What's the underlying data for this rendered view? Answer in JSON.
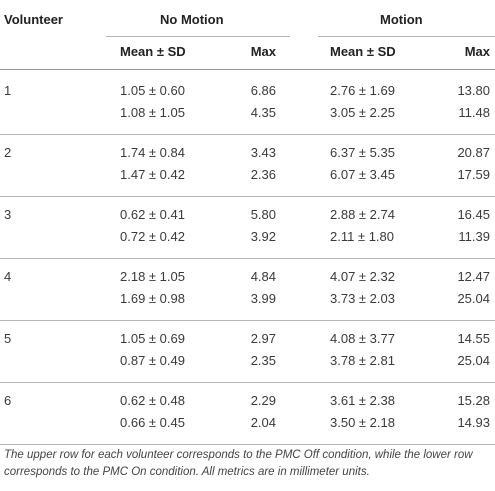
{
  "table": {
    "col_volunteer": "Volunteer",
    "group_no_motion": "No Motion",
    "group_motion": "Motion",
    "sub_mean": "Mean ± SD",
    "sub_max": "Max",
    "rows": [
      {
        "id": "1",
        "off": {
          "nm_mean": "1.05 ± 0.60",
          "nm_max": "6.86",
          "m_mean": "2.76 ± 1.69",
          "m_max": "13.80"
        },
        "on": {
          "nm_mean": "1.08 ± 1.05",
          "nm_max": "4.35",
          "m_mean": "3.05 ± 2.25",
          "m_max": "11.48"
        }
      },
      {
        "id": "2",
        "off": {
          "nm_mean": "1.74 ± 0.84",
          "nm_max": "3.43",
          "m_mean": "6.37 ± 5.35",
          "m_max": "20.87"
        },
        "on": {
          "nm_mean": "1.47 ± 0.42",
          "nm_max": "2.36",
          "m_mean": "6.07 ± 3.45",
          "m_max": "17.59"
        }
      },
      {
        "id": "3",
        "off": {
          "nm_mean": "0.62 ± 0.41",
          "nm_max": "5.80",
          "m_mean": "2.88 ± 2.74",
          "m_max": "16.45"
        },
        "on": {
          "nm_mean": "0.72 ± 0.42",
          "nm_max": "3.92",
          "m_mean": "2.11 ± 1.80",
          "m_max": "11.39"
        }
      },
      {
        "id": "4",
        "off": {
          "nm_mean": "2.18 ± 1.05",
          "nm_max": "4.84",
          "m_mean": "4.07 ± 2.32",
          "m_max": "12.47"
        },
        "on": {
          "nm_mean": "1.69 ± 0.98",
          "nm_max": "3.99",
          "m_mean": "3.73 ± 2.03",
          "m_max": "25.04"
        }
      },
      {
        "id": "5",
        "off": {
          "nm_mean": "1.05 ± 0.69",
          "nm_max": "2.97",
          "m_mean": "4.08 ± 3.77",
          "m_max": "14.55"
        },
        "on": {
          "nm_mean": "0.87 ± 0.49",
          "nm_max": "2.35",
          "m_mean": "3.78 ± 2.81",
          "m_max": "25.04"
        }
      },
      {
        "id": "6",
        "off": {
          "nm_mean": "0.62 ± 0.48",
          "nm_max": "2.29",
          "m_mean": "3.61 ± 2.38",
          "m_max": "15.28"
        },
        "on": {
          "nm_mean": "0.66 ± 0.45",
          "nm_max": "2.04",
          "m_mean": "3.50 ± 2.18",
          "m_max": "14.93"
        }
      }
    ],
    "footnote": "The upper row for each volunteer corresponds to the PMC Off condition, while the lower row corresponds to the PMC On condition. All metrics are in millimeter units."
  }
}
